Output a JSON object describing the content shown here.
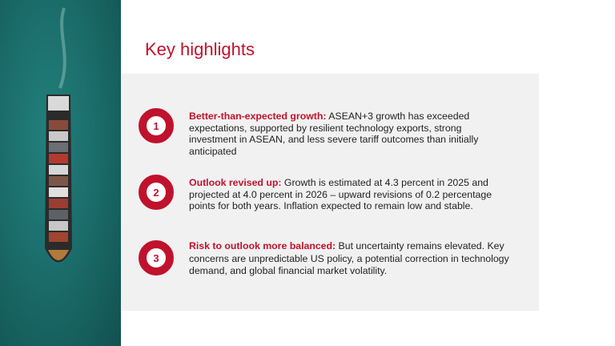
{
  "title": "Key highlights",
  "colors": {
    "accent": "#c0122c",
    "panel": "#f1f1f1",
    "sea": "#1a6b69"
  },
  "image": "cargo-ship-aerial-photo",
  "items": [
    {
      "number": "1",
      "lead": "Better-than-expected growth:",
      "body": " ASEAN+3 growth has exceeded expectations, supported by resilient technology exports, strong investment in ASEAN, and less severe tariff outcomes than initially anticipated"
    },
    {
      "number": "2",
      "lead": "Outlook revised up:",
      "body": " Growth is estimated at 4.3 percent in 2025 and projected at 4.0 percent in 2026 – upward revisions of 0.2 percentage points for both years. Inflation expected to remain low and stable."
    },
    {
      "number": "3",
      "lead": "Risk to outlook more balanced:",
      "body": " But uncertainty remains elevated. Key concerns are unpredictable US policy, a potential correction in technology demand, and global financial market volatility."
    }
  ]
}
